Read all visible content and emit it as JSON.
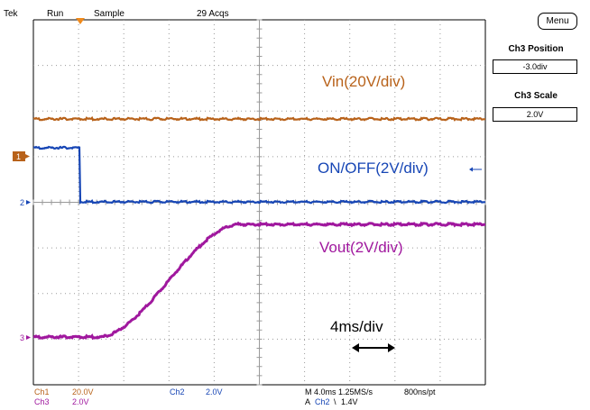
{
  "header": {
    "brand": "Tek",
    "run_state": "Run",
    "acq_mode": "Sample",
    "acq_count": "29 Acqs"
  },
  "side_menu": {
    "menu_button": "Menu",
    "position_label": "Ch3 Position",
    "position_value": "-3.0div",
    "scale_label": "Ch3 Scale",
    "scale_value": "2.0V"
  },
  "channel_markers": {
    "ch1": "1",
    "ch2": "2",
    "ch3": "3"
  },
  "annotations": {
    "vin": "Vin(20V/div)",
    "onoff": "ON/OFF(2V/div)",
    "vout": "Vout(2V/div)",
    "timebase": "4ms/div"
  },
  "readout": {
    "ch1_name": "Ch1",
    "ch1_scale": "20.0V",
    "ch2_name": "Ch2",
    "ch2_scale": "2.0V",
    "ch3_name": "Ch3",
    "ch3_scale": "2.0V",
    "horizontal": "M 4.0ms 1.25MS/s",
    "record": "800ns/pt",
    "trigger_prefix": "A",
    "trigger_source": "Ch2",
    "trigger_slope": "\\",
    "trigger_level": "1.4V"
  },
  "colors": {
    "ch1": "#b8621a",
    "ch2": "#1746b5",
    "ch3": "#a0189e",
    "grid": "#9a9a9a",
    "trigger": "#f08a1c"
  }
}
